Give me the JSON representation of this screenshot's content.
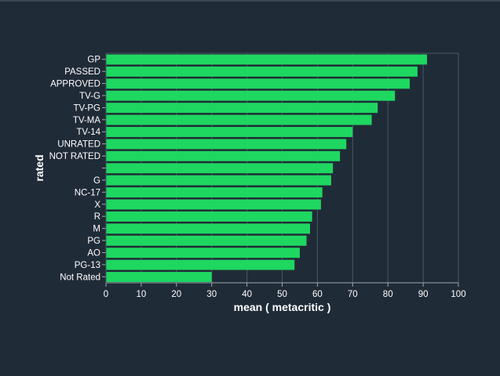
{
  "chart_data": {
    "type": "bar",
    "orientation": "horizontal",
    "title": "",
    "xlabel": "mean ( metacritic )",
    "ylabel": "rated",
    "xlim": [
      0,
      100
    ],
    "xticks": [
      0,
      10,
      20,
      30,
      40,
      50,
      60,
      70,
      80,
      90,
      100
    ],
    "grid": true,
    "bar_color": "#1ed760",
    "categories": [
      "GP",
      "PASSED",
      "APPROVED",
      "TV-G",
      "TV-PG",
      "TV-MA",
      "TV-14",
      "UNRATED",
      "NOT RATED",
      "",
      "G",
      "NC-17",
      "X",
      "R",
      "M",
      "PG",
      "AO",
      "PG-13",
      "Not Rated"
    ],
    "values": [
      91.1,
      88.4,
      86.2,
      82.0,
      77.1,
      75.4,
      70.0,
      68.2,
      66.4,
      64.4,
      63.9,
      61.4,
      61.0,
      58.5,
      57.9,
      56.9,
      55.0,
      53.5,
      30.0
    ]
  }
}
